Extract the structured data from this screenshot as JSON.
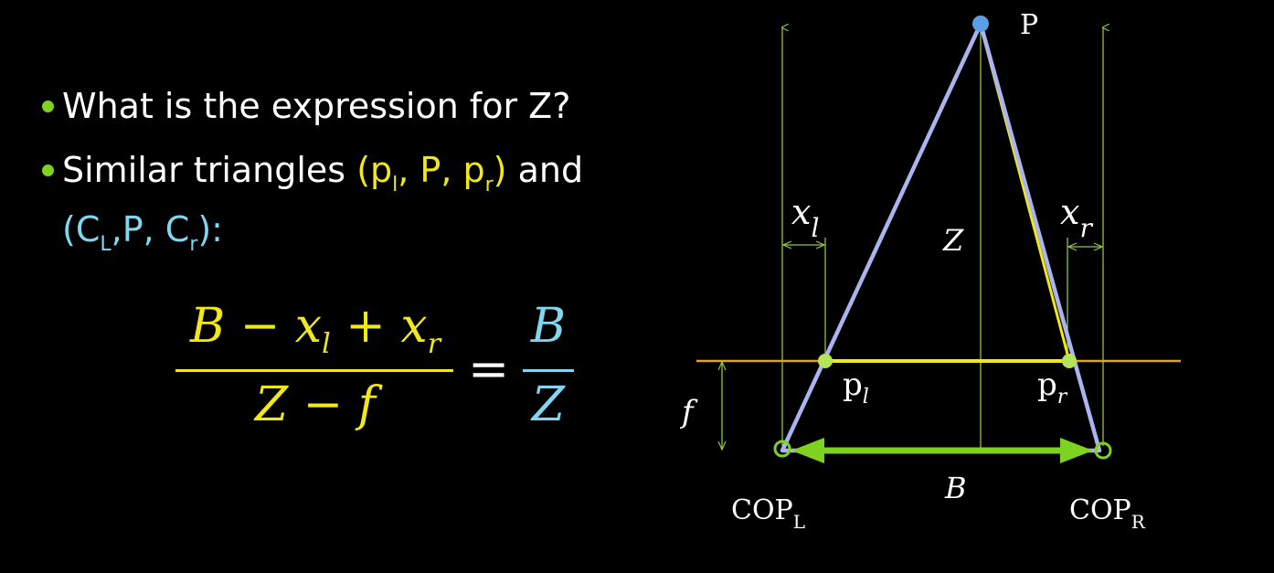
{
  "bullets": {
    "b1": "What is the expression for Z?",
    "b2": {
      "t1": "Similar triangles ",
      "y1": "(p",
      "y1s": "l",
      "y2": ", P, p",
      "y2s": "r",
      "y3": ")",
      "t2": " and",
      "c1": "(C",
      "c1s": "L",
      "c2": ",P, C",
      "c2s": "r",
      "c3": "):"
    }
  },
  "equation": {
    "num_left_a": "B − x",
    "num_left_sub1": "l",
    "num_left_b": " + x",
    "num_left_sub2": "r",
    "den_left": "Z − f",
    "equals": "=",
    "num_right": "B",
    "den_right": "Z"
  },
  "diagram": {
    "point_label": "P",
    "z_label": "Z",
    "xl_main": "x",
    "xl_sub": "l",
    "xr_main": "x",
    "xr_sub": "r",
    "pl_main": "p",
    "pl_sub": "l",
    "pr_main": "p",
    "pr_sub": "r",
    "f_label": "f",
    "b_label": "B",
    "copl_main": "COP",
    "copl_sub": "L",
    "copr_main": "COP",
    "copr_sub": "R"
  },
  "colors": {
    "bullet": "#7ed321",
    "yellow": "#f2e818",
    "cyan": "#7fd8f0",
    "triangle": "#aab4ef",
    "image_plane": "#e0a030",
    "guide": "#8ec63f",
    "baseline_arrow": "#7ed321",
    "point_p": "#5aa0e6"
  }
}
